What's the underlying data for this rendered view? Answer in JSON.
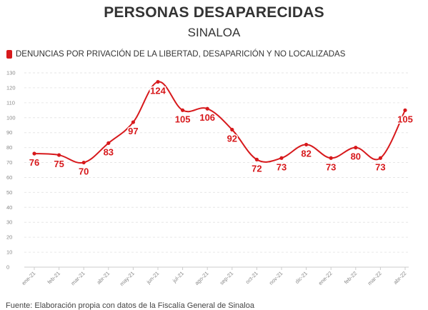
{
  "header": {
    "title": "PERSONAS DESAPARECIDAS",
    "subtitle": "SINALOA"
  },
  "legend": {
    "label": "DENUNCIAS POR PRIVACIÓN DE LA LIBERTAD, DESAPARICIÓN Y NO LOCALIZADAS"
  },
  "footer": {
    "source": "Fuente: Elaboración propia con datos de la Fiscalía General de Sinaloa"
  },
  "colors": {
    "series": "#d7191c",
    "grid": "#e6e6e6",
    "axis": "#cccccc"
  },
  "chart_data": {
    "type": "line",
    "title": "PERSONAS DESAPARECIDAS",
    "subtitle": "SINALOA",
    "categories": [
      "ene-21",
      "feb-21",
      "mar-21",
      "abr-21",
      "may-21",
      "jun-21",
      "jul-21",
      "ago-21",
      "sep-21",
      "oct-21",
      "nov-21",
      "dic-21",
      "ene-22",
      "feb-22",
      "mar-22",
      "abr-22"
    ],
    "series": [
      {
        "name": "DENUNCIAS POR PRIVACIÓN DE LA LIBERTAD, DESAPARICIÓN Y NO LOCALIZADAS",
        "values": [
          76,
          75,
          70,
          83,
          97,
          124,
          105,
          106,
          92,
          72,
          73,
          82,
          73,
          80,
          73,
          105
        ]
      }
    ],
    "ylim": [
      0,
      130
    ],
    "yticks": [
      0,
      10,
      20,
      30,
      40,
      50,
      60,
      70,
      80,
      90,
      100,
      110,
      120,
      130
    ],
    "grid": true,
    "legend_position": "top-left",
    "xlabel": "",
    "ylabel": ""
  }
}
